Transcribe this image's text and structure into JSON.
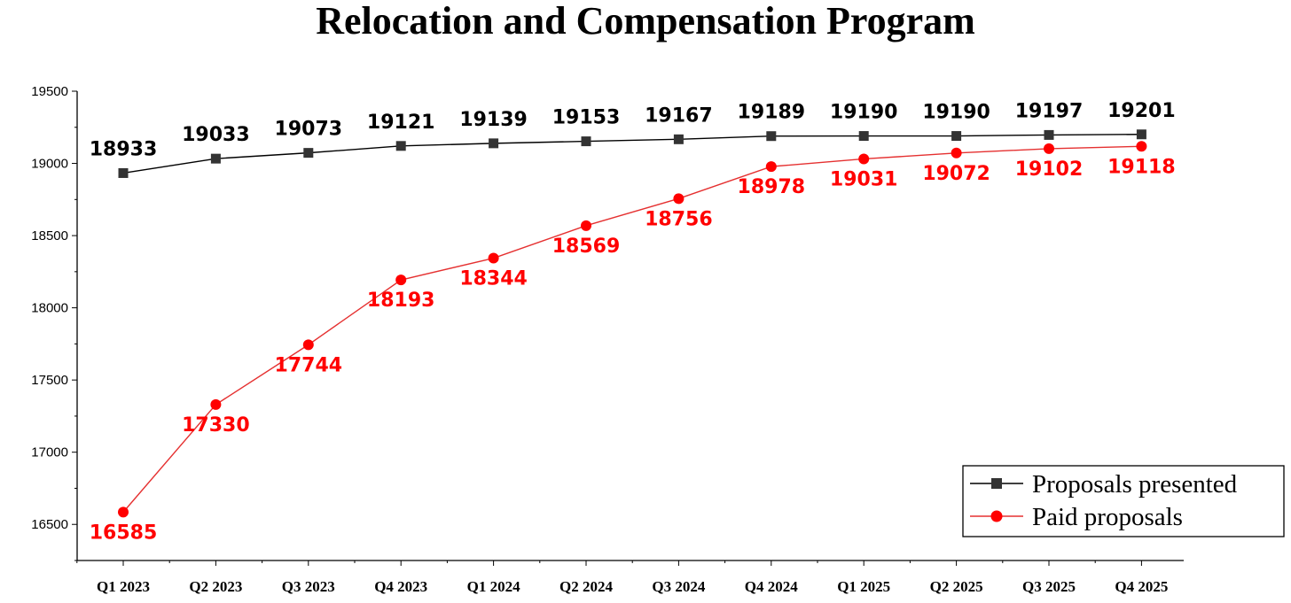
{
  "chart_data": {
    "type": "line",
    "title": "Relocation and Compensation Program",
    "xlabel": "",
    "ylabel": "",
    "categories": [
      "Q1 2023",
      "Q2 2023",
      "Q3 2023",
      "Q4 2023",
      "Q1 2024",
      "Q2 2024",
      "Q3 2024",
      "Q4 2024",
      "Q1 2025",
      "Q2 2025",
      "Q3 2025",
      "Q4 2025"
    ],
    "yticks": [
      16500,
      17000,
      17500,
      18000,
      18500,
      19000,
      19500
    ],
    "ylim": [
      16250,
      19500
    ],
    "grid": false,
    "legend_position": "bottom-right",
    "series": [
      {
        "name": "Proposals presented",
        "color": "#333333",
        "line_color": "#000000",
        "marker": "square",
        "values": [
          18933,
          19033,
          19073,
          19121,
          19139,
          19153,
          19167,
          19189,
          19190,
          19190,
          19197,
          19201
        ]
      },
      {
        "name": "Paid proposals",
        "color": "#ff0000",
        "line_color": "#e53030",
        "marker": "circle",
        "values": [
          16585,
          17330,
          17744,
          18193,
          18344,
          18569,
          18756,
          18978,
          19031,
          19072,
          19102,
          19118
        ]
      }
    ]
  }
}
